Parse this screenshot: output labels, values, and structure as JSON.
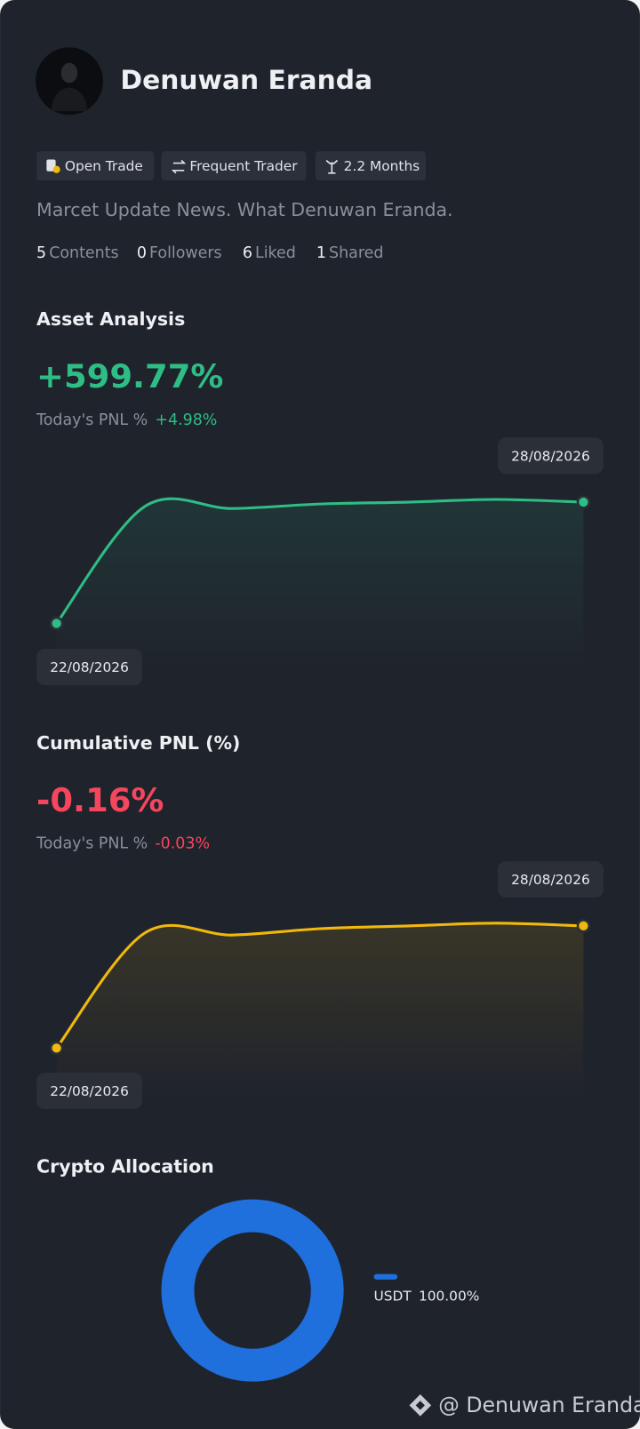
{
  "profile": {
    "name": "Denuwan Eranda",
    "tags": [
      "Open Trade",
      "Frequent Trader",
      "2.2 Months"
    ],
    "bio": "Marcet Update News. What Denuwan Eranda.",
    "stats": [
      {
        "value": 5,
        "label": "Contents"
      },
      {
        "value": 0,
        "label": "Followers"
      },
      {
        "value": 6,
        "label": "Liked"
      },
      {
        "value": 1,
        "label": "Shared"
      }
    ]
  },
  "asset_analysis": {
    "title": "Asset Analysis",
    "value": "+599.77%",
    "pnl_label": "Today's PNL %",
    "pnl_value": "+4.98%",
    "chart_data": {
      "type": "line",
      "categories": [
        "22/08/2026",
        null,
        null,
        null,
        null,
        null,
        "28/08/2026"
      ],
      "values": [
        22.4,
        73.6,
        72.8,
        74.8,
        75.6,
        76.8,
        75.6
      ],
      "color": "#2ebd85",
      "ylim": [
        0,
        100
      ],
      "grid": true
    }
  },
  "cumulative_pnl": {
    "title": "Cumulative PNL (%)",
    "value": "-0.16%",
    "pnl_label": "Today's PNL %",
    "pnl_value": "-0.03%",
    "chart_data": {
      "type": "line",
      "categories": [
        "22/08/2026",
        null,
        null,
        null,
        null,
        null,
        "28/08/2026"
      ],
      "values": [
        22,
        72.4,
        71.6,
        74.4,
        75.6,
        76.8,
        75.6
      ],
      "color": "#f0b90b",
      "ylim": [
        0,
        100
      ],
      "grid": true
    }
  },
  "crypto_allocation": {
    "title": "Crypto Allocation",
    "chart_data": {
      "type": "pie",
      "categories": [
        "USDT"
      ],
      "values": [
        100
      ],
      "value_labels": [
        "100.00%"
      ],
      "colors": [
        "#1f6fdc"
      ]
    }
  },
  "watermark": "@ Denuwan Eranda"
}
